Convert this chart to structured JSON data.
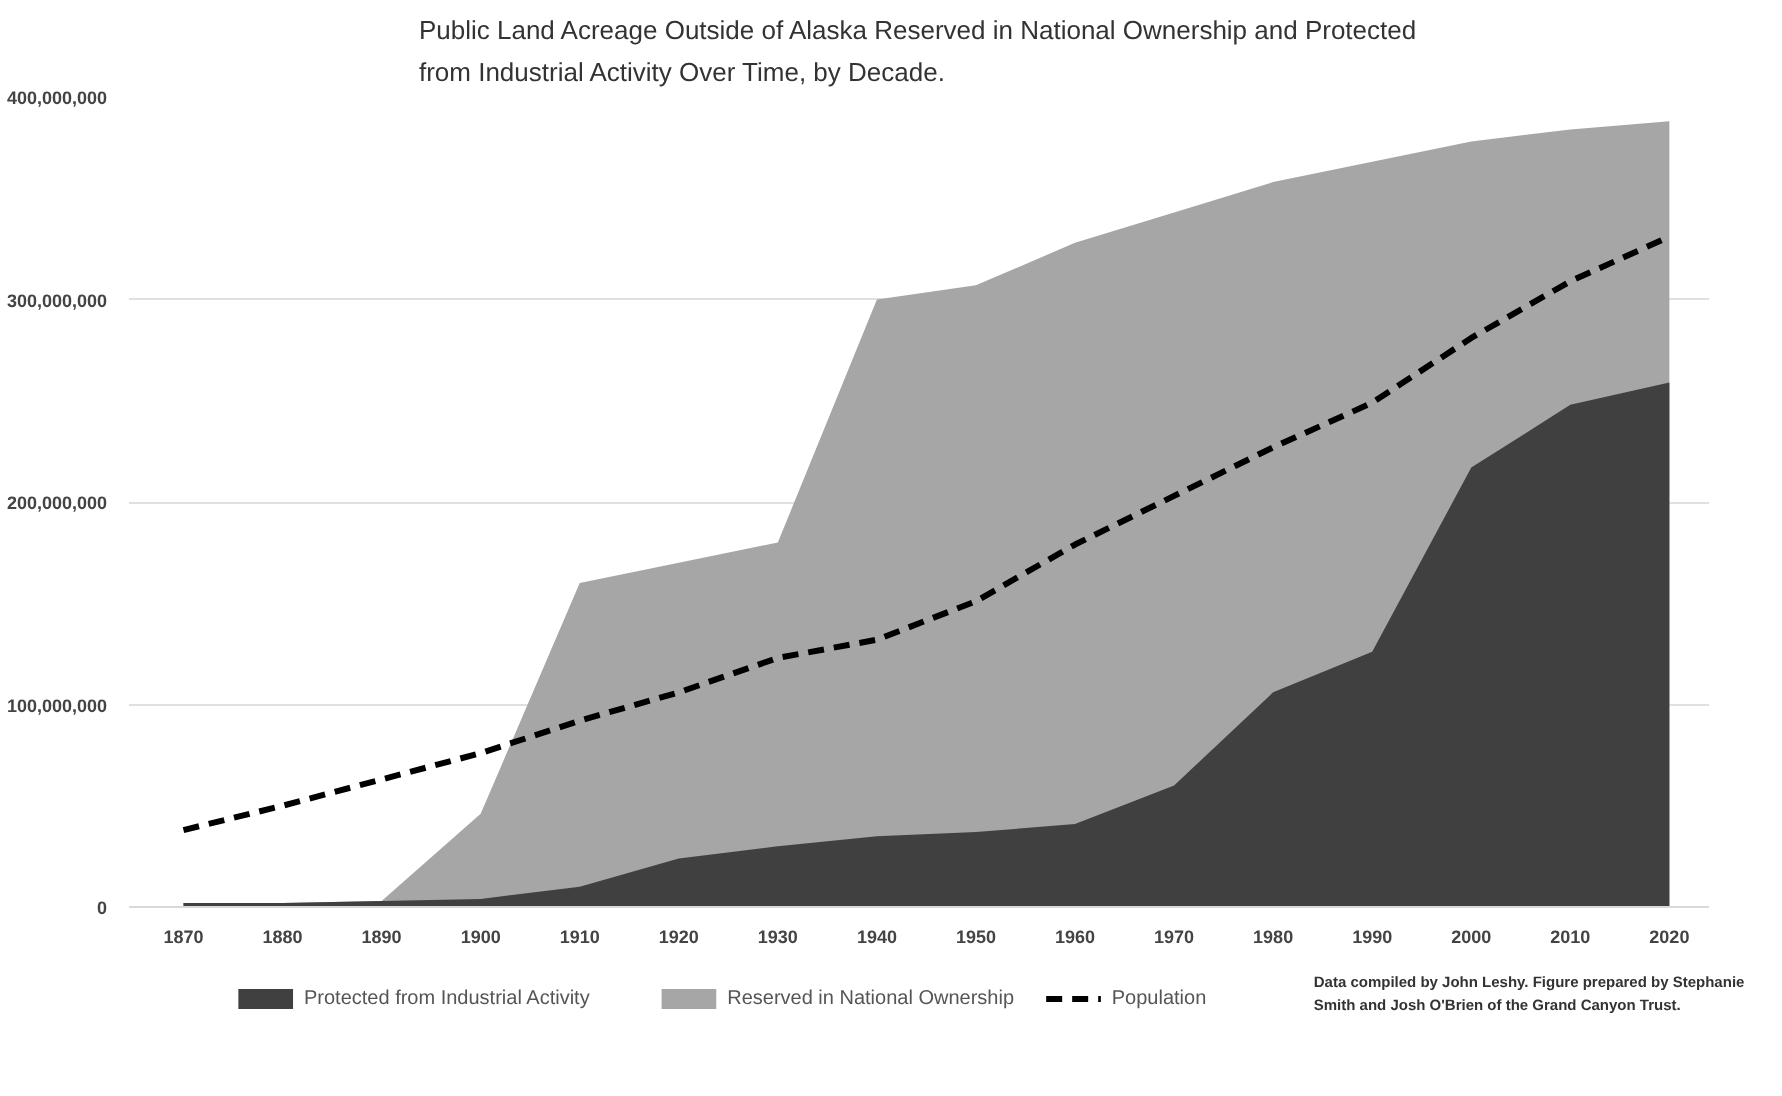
{
  "chart_data": {
    "type": "area",
    "title": "Public Land Acreage Outside of Alaska Reserved in National Ownership and Protected\nfrom Industrial Activity Over Time, by Decade.",
    "categories": [
      "1870",
      "1880",
      "1890",
      "1900",
      "1910",
      "1920",
      "1930",
      "1940",
      "1950",
      "1960",
      "1970",
      "1980",
      "1990",
      "2000",
      "2010",
      "2020"
    ],
    "series": [
      {
        "name": "Protected from Industrial Activity",
        "color": "#404040",
        "values": [
          2000000,
          2000000,
          3000000,
          4000000,
          10000000,
          24000000,
          30000000,
          35000000,
          37000000,
          41000000,
          60000000,
          106000000,
          126000000,
          217000000,
          248000000,
          259000000
        ]
      },
      {
        "name": "Reserved in National Ownership",
        "color": "#a6a6a6",
        "values": [
          2000000,
          2000000,
          3000000,
          46000000,
          160000000,
          170000000,
          180000000,
          300000000,
          307000000,
          328000000,
          343000000,
          358000000,
          368000000,
          378000000,
          384000000,
          388000000
        ]
      },
      {
        "name": "Population",
        "type": "line",
        "line_style": "dashed",
        "color": "#000000",
        "values": [
          38000000,
          50000000,
          63000000,
          76000000,
          92000000,
          106000000,
          123000000,
          132000000,
          151000000,
          179000000,
          203000000,
          227000000,
          249000000,
          281000000,
          309000000,
          331000000
        ]
      }
    ],
    "ylim": [
      0,
      400000000
    ],
    "yticks": [
      {
        "value": 0,
        "label": "0"
      },
      {
        "value": 100000000,
        "label": "100,000,000"
      },
      {
        "value": 200000000,
        "label": "200,000,000"
      },
      {
        "value": 300000000,
        "label": "300,000,000"
      },
      {
        "value": 400000000,
        "label": "400,000,000"
      }
    ],
    "grid": "y",
    "legend": "bottom",
    "annotations": [
      "Data compiled by John Leshy. Figure prepared by Stephanie\nSmith and Josh O'Brien of the Grand Canyon Trust."
    ]
  }
}
